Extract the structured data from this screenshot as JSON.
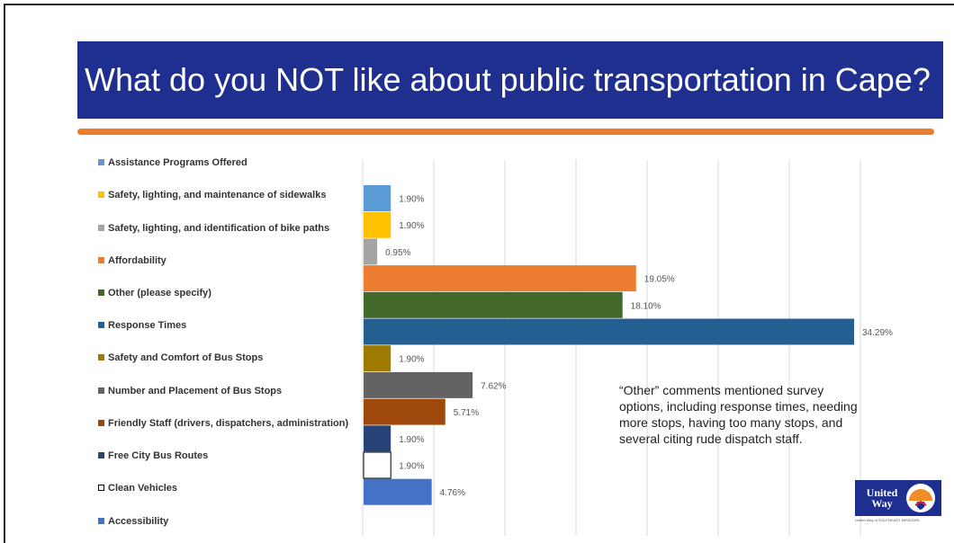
{
  "title": "What do you NOT like about public transportation in Cape?",
  "comment": "“Other” comments mentioned survey options, including response times, needing more stops, having too many stops, and several citing rude dispatch staff.",
  "logo": {
    "line1": "United",
    "line2": "Way",
    "tagline": "United Way of SOUTHEAST MISSOURI"
  },
  "chart_data": {
    "type": "bar",
    "orientation": "horizontal",
    "categories": [
      "Assistance Programs Offered",
      "Safety, lighting, and maintenance of sidewalks",
      "Safety, lighting, and identification of bike paths",
      "Affordability",
      "Other (please specify)",
      "Response Times",
      "Safety and Comfort of Bus Stops",
      "Number and Placement of Bus Stops",
      "Friendly Staff (drivers, dispatchers, administration)",
      "Free City Bus Routes",
      "Clean Vehicles",
      "Accessibility"
    ],
    "values": [
      1.9,
      1.9,
      0.95,
      19.05,
      18.1,
      34.29,
      1.9,
      7.62,
      5.71,
      1.9,
      1.9,
      4.76
    ],
    "labels": [
      "1.90%",
      "1.90%",
      "0.95%",
      "19.05%",
      "18.10%",
      "34.29%",
      "1.90%",
      "7.62%",
      "5.71%",
      "1.90%",
      "1.90%",
      "4.76%"
    ],
    "colors": [
      "#5b9bd5",
      "#ffc000",
      "#a5a5a5",
      "#ed7d31",
      "#43682b",
      "#255e91",
      "#9e7a00",
      "#636363",
      "#9e480e",
      "#264478",
      "#ffffff",
      "#4472c4"
    ],
    "xlim": [
      0,
      35
    ],
    "grid": true,
    "legend_position": "left"
  }
}
